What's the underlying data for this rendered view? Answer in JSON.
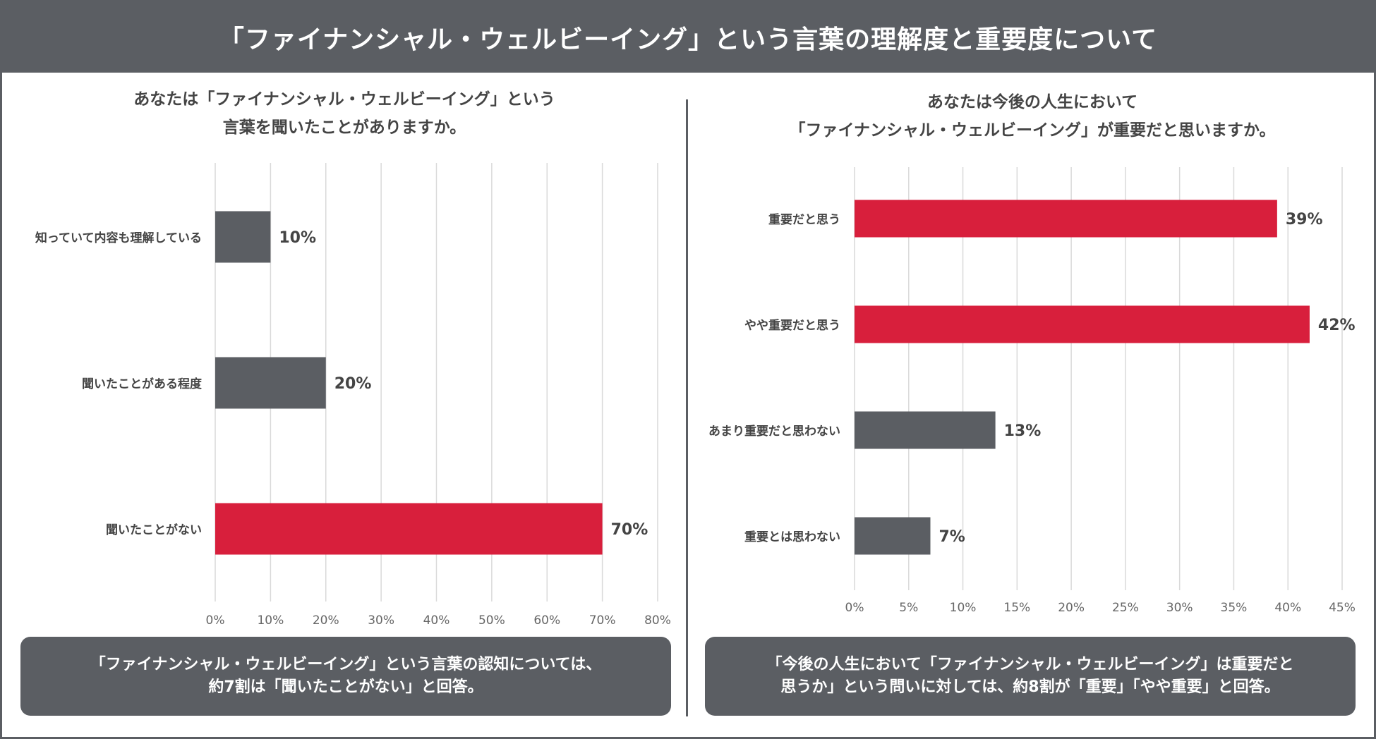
{
  "title": "「ファイナンシャル・ウェルビーイング」という言葉の理解度と重要度について",
  "colors": {
    "header": "#5b5e63",
    "highlight": "#d81f3c",
    "neutral": "#5b5e63",
    "grid": "#d9d9d9",
    "text": "#444444"
  },
  "left": {
    "question_line1": "あなたは「ファイナンシャル・ウェルビーイング」という",
    "question_line2": "言葉を聞いたことがありますか。",
    "summary_line1": "「ファイナンシャル・ウェルビーイング」という言葉の認知については、",
    "summary_line2": "約7割は「聞いたことがない」と回答。"
  },
  "right": {
    "question_line1": "あなたは今後の人生において",
    "question_line2": "「ファイナンシャル・ウェルビーイング」が重要だと思いますか。",
    "summary_line1": "「今後の人生において「ファイナンシャル・ウェルビーイング」は重要だと",
    "summary_line2": "思うか」という問いに対しては、約8割が「重要」「やや重要」と回答。"
  },
  "chart_data": [
    {
      "type": "bar",
      "orientation": "horizontal",
      "title": "あなたは「ファイナンシャル・ウェルビーイング」という言葉を聞いたことがありますか。",
      "categories": [
        "知っていて内容も理解している",
        "聞いたことがある程度",
        "聞いたことがない"
      ],
      "values": [
        10,
        20,
        70
      ],
      "value_labels": [
        "10%",
        "20%",
        "70%"
      ],
      "highlight": [
        false,
        false,
        true
      ],
      "xlim": [
        0,
        80
      ],
      "ticks": [
        0,
        10,
        20,
        30,
        40,
        50,
        60,
        70,
        80
      ],
      "tick_labels": [
        "0%",
        "10%",
        "20%",
        "30%",
        "40%",
        "50%",
        "60%",
        "70%",
        "80%"
      ],
      "grid": true
    },
    {
      "type": "bar",
      "orientation": "horizontal",
      "title": "あなたは今後の人生において「ファイナンシャル・ウェルビーイング」が重要だと思いますか。",
      "categories": [
        "重要だと思う",
        "やや重要だと思う",
        "あまり重要だと思わない",
        "重要とは思わない"
      ],
      "values": [
        39,
        42,
        13,
        7
      ],
      "value_labels": [
        "39%",
        "42%",
        "13%",
        "7%"
      ],
      "highlight": [
        true,
        true,
        false,
        false
      ],
      "xlim": [
        0,
        45
      ],
      "ticks": [
        0,
        5,
        10,
        15,
        20,
        25,
        30,
        35,
        40,
        45
      ],
      "tick_labels": [
        "0%",
        "5%",
        "10%",
        "15%",
        "20%",
        "25%",
        "30%",
        "35%",
        "40%",
        "45%"
      ],
      "grid": true
    }
  ]
}
